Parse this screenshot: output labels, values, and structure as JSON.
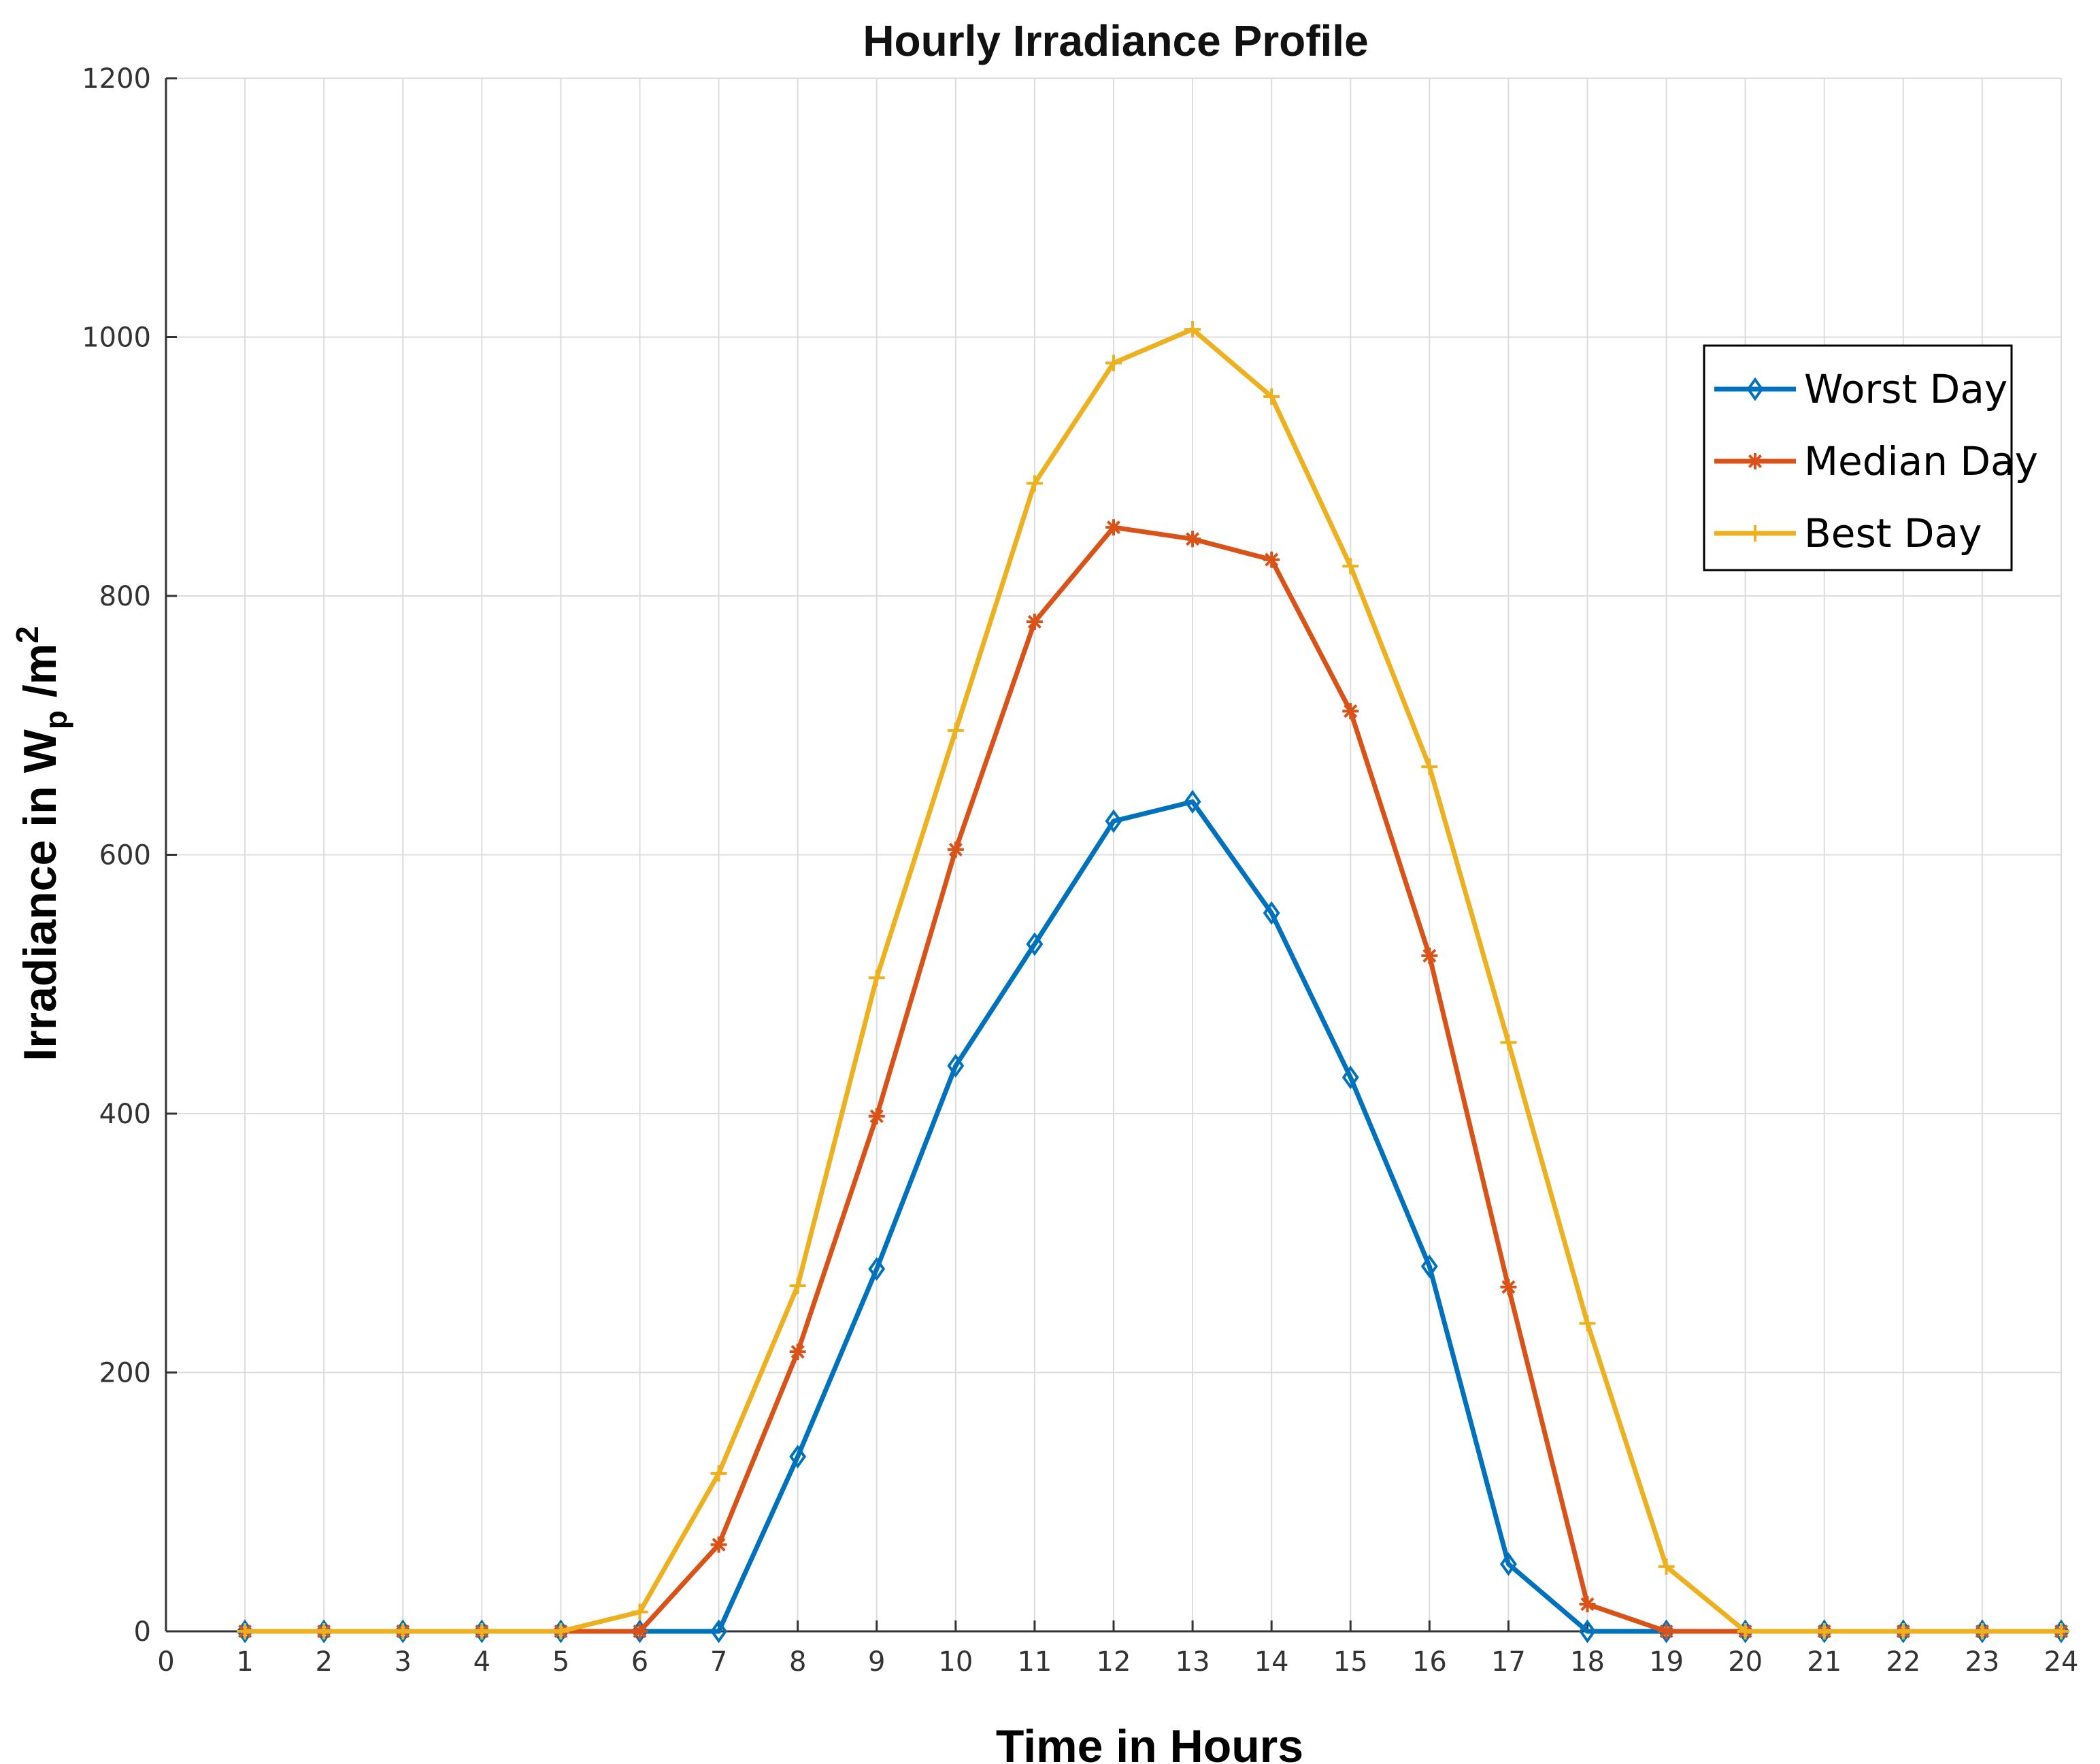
{
  "chart_data": {
    "type": "line",
    "title": "Hourly Irradiance Profile",
    "xlabel": "Time in Hours",
    "ylabel_main": "Irradiance in W",
    "ylabel_sub": "p",
    "ylabel_unit": " /m",
    "ylabel_sup": "2",
    "xlim": [
      0,
      24
    ],
    "ylim": [
      0,
      1200
    ],
    "xticks": [
      0,
      1,
      2,
      3,
      4,
      5,
      6,
      7,
      8,
      9,
      10,
      11,
      12,
      13,
      14,
      15,
      16,
      17,
      18,
      19,
      20,
      21,
      22,
      23,
      24
    ],
    "yticks": [
      0,
      200,
      400,
      600,
      800,
      1000,
      1200
    ],
    "grid": true,
    "legend_position": "top-right",
    "x": [
      1,
      2,
      3,
      4,
      5,
      6,
      7,
      8,
      9,
      10,
      11,
      12,
      13,
      14,
      15,
      16,
      17,
      18,
      19,
      20,
      21,
      22,
      23,
      24
    ],
    "series": [
      {
        "name": "Worst Day",
        "color": "#0072BD",
        "marker": "diamond",
        "values": [
          0,
          0,
          0,
          0,
          0,
          0,
          0,
          135,
          280,
          437,
          531,
          626,
          641,
          555,
          428,
          282,
          52,
          0,
          0,
          0,
          0,
          0,
          0,
          0
        ]
      },
      {
        "name": "Median Day",
        "color": "#D95319",
        "marker": "asterisk",
        "values": [
          0,
          0,
          0,
          0,
          0,
          0,
          67,
          216,
          398,
          604,
          780,
          853,
          844,
          828,
          711,
          522,
          266,
          21,
          0,
          0,
          0,
          0,
          0,
          0
        ]
      },
      {
        "name": "Best Day",
        "color": "#EDB120",
        "marker": "plus",
        "values": [
          0,
          0,
          0,
          0,
          0,
          15,
          122,
          267,
          505,
          696,
          887,
          980,
          1006,
          954,
          823,
          668,
          455,
          238,
          50,
          0,
          0,
          0,
          0,
          0
        ]
      }
    ]
  }
}
